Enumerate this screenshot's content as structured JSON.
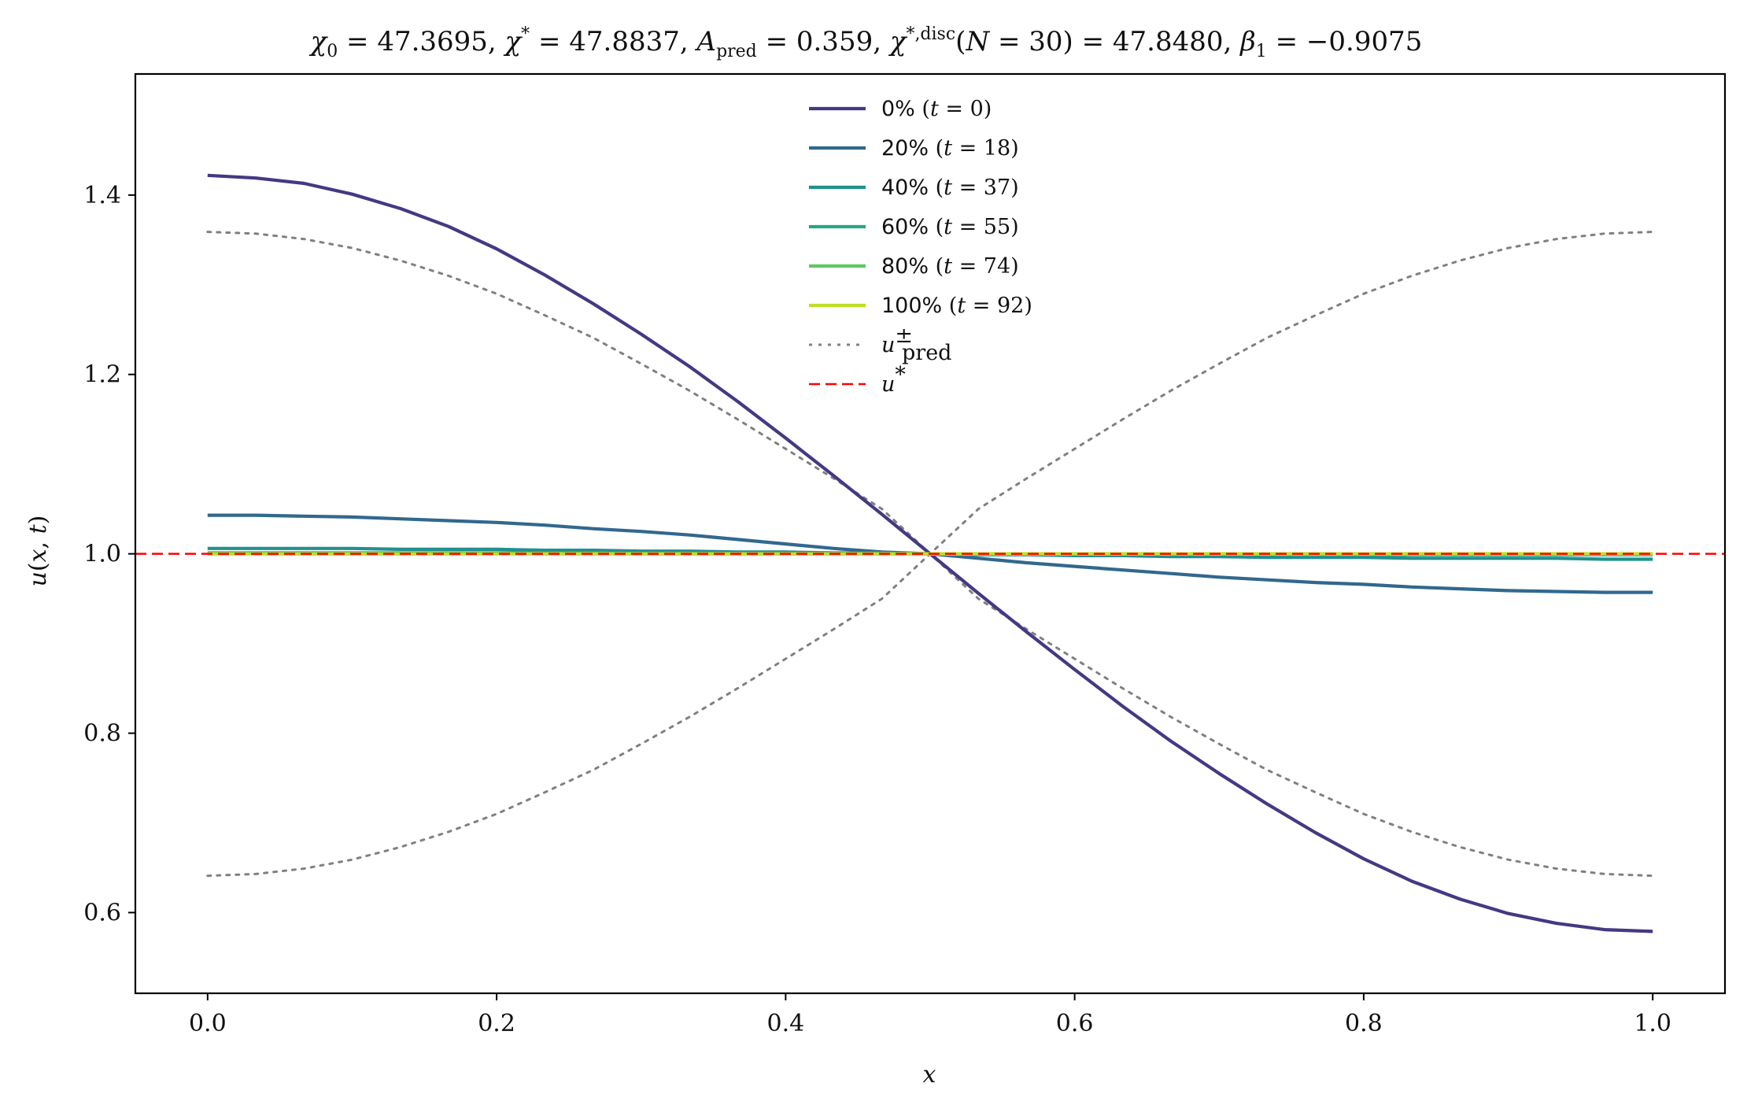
{
  "chart_data": {
    "type": "line",
    "title": "χ₀ = 47.3695,  χ* = 47.8837,  A_pred = 0.359,  χ*,disc(N = 30) = 47.8480,  β₁ = −0.9075",
    "xlabel": "x",
    "ylabel": "u(x, t)",
    "xlim": [
      -0.05,
      1.05
    ],
    "ylim": [
      0.51,
      1.535
    ],
    "xticks": [
      0.0,
      0.2,
      0.4,
      0.6,
      0.8,
      1.0
    ],
    "xtick_labels": [
      "0.0",
      "0.2",
      "0.4",
      "0.6",
      "0.8",
      "1.0"
    ],
    "yticks": [
      0.6,
      0.8,
      1.0,
      1.2,
      1.4
    ],
    "ytick_labels": [
      "0.6",
      "0.8",
      "1.0",
      "1.2",
      "1.4"
    ],
    "grid": false,
    "legend_position": "top-center",
    "x": [
      0.0,
      0.0333,
      0.0667,
      0.1,
      0.1333,
      0.1667,
      0.2,
      0.2333,
      0.2667,
      0.3,
      0.3333,
      0.3667,
      0.4,
      0.4333,
      0.4667,
      0.5,
      0.5333,
      0.5667,
      0.6,
      0.6333,
      0.6667,
      0.7,
      0.7333,
      0.7667,
      0.8,
      0.8333,
      0.8667,
      0.9,
      0.9333,
      0.9667,
      1.0
    ],
    "series": [
      {
        "name": "0% (t = 0)",
        "label_text": "0%",
        "label_math": "(t = 0)",
        "color": "#443983",
        "style": "solid",
        "values": [
          1.422,
          1.419,
          1.413,
          1.401,
          1.385,
          1.365,
          1.34,
          1.311,
          1.279,
          1.245,
          1.209,
          1.17,
          1.129,
          1.087,
          1.044,
          1.0,
          0.956,
          0.913,
          0.871,
          0.83,
          0.791,
          0.755,
          0.721,
          0.689,
          0.66,
          0.635,
          0.615,
          0.599,
          0.588,
          0.581,
          0.579
        ]
      },
      {
        "name": "20% (t = 18)",
        "label_text": "20%",
        "label_math": "(t = 18)",
        "color": "#31688e",
        "style": "solid",
        "values": [
          1.043,
          1.043,
          1.042,
          1.041,
          1.039,
          1.037,
          1.035,
          1.032,
          1.028,
          1.025,
          1.021,
          1.016,
          1.011,
          1.006,
          1.002,
          1.0,
          0.995,
          0.99,
          0.986,
          0.982,
          0.978,
          0.974,
          0.971,
          0.968,
          0.966,
          0.963,
          0.961,
          0.959,
          0.958,
          0.957,
          0.957
        ]
      },
      {
        "name": "40% (t = 37)",
        "label_text": "40%",
        "label_math": "(t = 37)",
        "color": "#21918c",
        "style": "solid",
        "values": [
          1.006,
          1.006,
          1.006,
          1.006,
          1.005,
          1.005,
          1.005,
          1.004,
          1.004,
          1.003,
          1.003,
          1.002,
          1.002,
          1.001,
          1.001,
          1.0,
          0.999,
          0.999,
          0.998,
          0.998,
          0.997,
          0.997,
          0.996,
          0.996,
          0.996,
          0.995,
          0.995,
          0.995,
          0.995,
          0.994,
          0.994
        ]
      },
      {
        "name": "60% (t = 55)",
        "label_text": "60%",
        "label_math": "(t = 55)",
        "color": "#22a884",
        "style": "solid",
        "values": [
          1.001,
          1.001,
          1.001,
          1.001,
          1.001,
          1.001,
          1.001,
          1.001,
          1.001,
          1.0,
          1.0,
          1.0,
          1.0,
          1.0,
          1.0,
          1.0,
          1.0,
          1.0,
          1.0,
          1.0,
          1.0,
          1.0,
          0.999,
          0.999,
          0.999,
          0.999,
          0.999,
          0.999,
          0.999,
          0.999,
          0.999
        ]
      },
      {
        "name": "80% (t = 74)",
        "label_text": "80%",
        "label_math": "(t = 74)",
        "color": "#5ec962",
        "style": "solid",
        "values": [
          1.0,
          1.0,
          1.0,
          1.0,
          1.0,
          1.0,
          1.0,
          1.0,
          1.0,
          1.0,
          1.0,
          1.0,
          1.0,
          1.0,
          1.0,
          1.0,
          1.0,
          1.0,
          1.0,
          1.0,
          1.0,
          1.0,
          1.0,
          1.0,
          1.0,
          1.0,
          1.0,
          1.0,
          1.0,
          1.0,
          1.0
        ]
      },
      {
        "name": "100% (t = 92)",
        "label_text": "100%",
        "label_math": "(t = 92)",
        "color": "#bddf26",
        "style": "solid",
        "values": [
          1.0,
          1.0,
          1.0,
          1.0,
          1.0,
          1.0,
          1.0,
          1.0,
          1.0,
          1.0,
          1.0,
          1.0,
          1.0,
          1.0,
          1.0,
          1.0,
          1.0,
          1.0,
          1.0,
          1.0,
          1.0,
          1.0,
          1.0,
          1.0,
          1.0,
          1.0,
          1.0,
          1.0,
          1.0,
          1.0,
          1.0
        ]
      },
      {
        "name": "u±pred (+)",
        "label_text": "",
        "label_math": "u±pred",
        "color": "#808080",
        "style": "dotted",
        "values": [
          1.359,
          1.357,
          1.351,
          1.341,
          1.327,
          1.31,
          1.29,
          1.266,
          1.241,
          1.212,
          1.182,
          1.15,
          1.117,
          1.084,
          1.05,
          1.0,
          0.95,
          0.916,
          0.883,
          0.85,
          0.818,
          0.788,
          0.759,
          0.734,
          0.71,
          0.69,
          0.673,
          0.659,
          0.649,
          0.643,
          0.641
        ]
      },
      {
        "name": "u±pred (−)",
        "label_text": "",
        "label_math": "",
        "color": "#808080",
        "style": "dotted",
        "values": [
          0.641,
          0.643,
          0.649,
          0.659,
          0.673,
          0.69,
          0.71,
          0.734,
          0.759,
          0.788,
          0.818,
          0.85,
          0.883,
          0.916,
          0.95,
          1.0,
          1.05,
          1.084,
          1.117,
          1.15,
          1.182,
          1.212,
          1.241,
          1.266,
          1.29,
          1.31,
          1.327,
          1.341,
          1.351,
          1.357,
          1.359
        ]
      }
    ],
    "hline": {
      "name": "u*",
      "label_math": "u*",
      "y": 1.0,
      "color": "#ff0000",
      "style": "dashed"
    }
  }
}
